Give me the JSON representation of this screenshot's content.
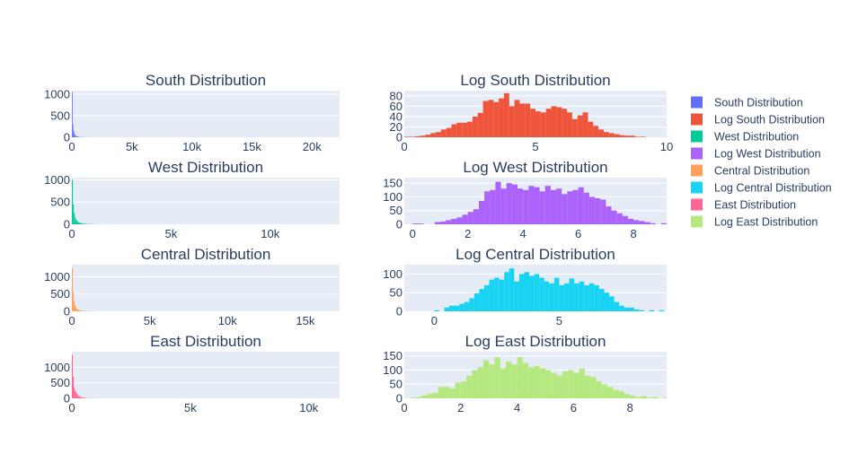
{
  "chart_data": [
    {
      "type": "bar",
      "title": "South Distribution",
      "color": "#636efa",
      "xlim": [
        0,
        22300
      ],
      "ylim": [
        0,
        1080
      ],
      "xticks": [
        {
          "v": 0,
          "l": "0"
        },
        {
          "v": 5000,
          "l": "5k"
        },
        {
          "v": 10000,
          "l": "10k"
        },
        {
          "v": 15000,
          "l": "15k"
        },
        {
          "v": 20000,
          "l": "20k"
        }
      ],
      "yticks": [
        {
          "v": 0,
          "l": "0"
        },
        {
          "v": 500,
          "l": "500"
        },
        {
          "v": 1000,
          "l": "1000"
        }
      ],
      "bin_start": 0,
      "bin_width": 60,
      "values": [
        1050,
        300,
        150,
        80,
        50,
        35,
        25,
        18,
        14,
        10,
        8,
        6,
        5,
        4,
        3,
        3,
        2,
        2,
        2,
        1,
        1,
        1,
        1,
        1,
        1,
        0,
        1,
        0,
        1,
        0,
        1
      ]
    },
    {
      "type": "bar",
      "title": "Log South Distribution",
      "color": "#ef553b",
      "xlim": [
        0,
        10
      ],
      "ylim": [
        0,
        90
      ],
      "xticks": [
        {
          "v": 0,
          "l": "0"
        },
        {
          "v": 5,
          "l": "5"
        },
        {
          "v": 10,
          "l": "10"
        }
      ],
      "yticks": [
        {
          "v": 0,
          "l": "0"
        },
        {
          "v": 20,
          "l": "20"
        },
        {
          "v": 40,
          "l": "40"
        },
        {
          "v": 60,
          "l": "60"
        },
        {
          "v": 80,
          "l": "80"
        }
      ],
      "bin_start": 0,
      "bin_width": 0.2,
      "values": [
        1,
        1,
        2,
        3,
        5,
        8,
        10,
        15,
        18,
        25,
        28,
        28,
        30,
        40,
        47,
        70,
        72,
        68,
        75,
        85,
        60,
        72,
        65,
        65,
        55,
        50,
        48,
        55,
        60,
        58,
        55,
        48,
        35,
        42,
        48,
        30,
        22,
        15,
        10,
        8,
        6,
        4,
        3,
        3,
        1,
        1,
        0,
        0,
        0,
        0
      ]
    },
    {
      "type": "bar",
      "title": "West Distribution",
      "color": "#00cc96",
      "xlim": [
        0,
        13500
      ],
      "ylim": [
        0,
        1050
      ],
      "xticks": [
        {
          "v": 0,
          "l": "0"
        },
        {
          "v": 5000,
          "l": "5k"
        },
        {
          "v": 10000,
          "l": "10k"
        }
      ],
      "yticks": [
        {
          "v": 0,
          "l": "0"
        },
        {
          "v": 500,
          "l": "500"
        },
        {
          "v": 1000,
          "l": "1000"
        }
      ],
      "bin_start": 0,
      "bin_width": 50,
      "values": [
        1000,
        450,
        250,
        150,
        95,
        70,
        50,
        40,
        30,
        25,
        20,
        15,
        12,
        10,
        8,
        7,
        6,
        5,
        4,
        4,
        3,
        3,
        2,
        2,
        2,
        1,
        1,
        1,
        1,
        1,
        1,
        1,
        1
      ]
    },
    {
      "type": "bar",
      "title": "Log West Distribution",
      "color": "#ab63fa",
      "xlim": [
        -0.3,
        9.2
      ],
      "ylim": [
        0,
        170
      ],
      "xticks": [
        {
          "v": 0,
          "l": "0"
        },
        {
          "v": 2,
          "l": "2"
        },
        {
          "v": 4,
          "l": "4"
        },
        {
          "v": 6,
          "l": "6"
        },
        {
          "v": 8,
          "l": "8"
        }
      ],
      "yticks": [
        {
          "v": 0,
          "l": "0"
        },
        {
          "v": 50,
          "l": "50"
        },
        {
          "v": 100,
          "l": "100"
        },
        {
          "v": 150,
          "l": "150"
        }
      ],
      "bin_start": 0,
      "bin_width": 0.2,
      "values": [
        3,
        3,
        0,
        0,
        8,
        10,
        15,
        20,
        25,
        35,
        45,
        55,
        85,
        120,
        125,
        155,
        130,
        150,
        145,
        130,
        125,
        140,
        135,
        120,
        140,
        125,
        130,
        110,
        120,
        125,
        135,
        115,
        100,
        95,
        90,
        65,
        50,
        40,
        30,
        20,
        15,
        12,
        8,
        4,
        0,
        4,
        0
      ]
    },
    {
      "type": "bar",
      "title": "Central Distribution",
      "color": "#ffa15a",
      "xlim": [
        0,
        17200
      ],
      "ylim": [
        0,
        1350
      ],
      "xticks": [
        {
          "v": 0,
          "l": "0"
        },
        {
          "v": 5000,
          "l": "5k"
        },
        {
          "v": 10000,
          "l": "10k"
        },
        {
          "v": 15000,
          "l": "15k"
        }
      ],
      "yticks": [
        {
          "v": 0,
          "l": "0"
        },
        {
          "v": 500,
          "l": "500"
        },
        {
          "v": 1000,
          "l": "1000"
        }
      ],
      "bin_start": 0,
      "bin_width": 60,
      "values": [
        1250,
        550,
        300,
        180,
        120,
        80,
        55,
        40,
        30,
        22,
        17,
        13,
        10,
        8,
        6,
        5,
        4,
        3,
        3,
        2,
        2,
        1,
        1,
        1,
        1,
        1,
        1
      ]
    },
    {
      "type": "bar",
      "title": "Log Central Distribution",
      "color": "#19d3f3",
      "xlim": [
        -1.2,
        9.3
      ],
      "ylim": [
        0,
        125
      ],
      "xticks": [
        {
          "v": 0,
          "l": "0"
        },
        {
          "v": 5,
          "l": "5"
        }
      ],
      "yticks": [
        {
          "v": 0,
          "l": "0"
        },
        {
          "v": 50,
          "l": "50"
        },
        {
          "v": 100,
          "l": "100"
        }
      ],
      "bin_start": 0,
      "bin_width": 0.2,
      "values": [
        3,
        0,
        10,
        15,
        15,
        20,
        25,
        35,
        48,
        60,
        70,
        85,
        90,
        85,
        105,
        115,
        80,
        100,
        105,
        95,
        100,
        90,
        80,
        75,
        90,
        70,
        75,
        88,
        75,
        80,
        70,
        75,
        70,
        60,
        50,
        40,
        25,
        15,
        10,
        10,
        5,
        3,
        0,
        3,
        0,
        3
      ]
    },
    {
      "type": "bar",
      "title": "East Distribution",
      "color": "#ff6692",
      "xlim": [
        0,
        11300
      ],
      "ylim": [
        0,
        1500
      ],
      "xticks": [
        {
          "v": 0,
          "l": "0"
        },
        {
          "v": 5000,
          "l": "5k"
        },
        {
          "v": 10000,
          "l": "10k"
        }
      ],
      "yticks": [
        {
          "v": 0,
          "l": "0"
        },
        {
          "v": 500,
          "l": "500"
        },
        {
          "v": 1000,
          "l": "1000"
        }
      ],
      "bin_start": 0,
      "bin_width": 40,
      "values": [
        1400,
        700,
        350,
        250,
        200,
        150,
        100,
        70,
        50,
        40,
        30,
        25,
        20,
        15,
        12,
        10,
        8,
        6,
        5,
        4,
        3,
        3,
        2,
        2,
        1,
        1,
        1,
        1,
        1,
        1
      ]
    },
    {
      "type": "bar",
      "title": "Log East Distribution",
      "color": "#b6e880",
      "xlim": [
        0,
        9.3
      ],
      "ylim": [
        0,
        165
      ],
      "xticks": [
        {
          "v": 0,
          "l": "0"
        },
        {
          "v": 2,
          "l": "2"
        },
        {
          "v": 4,
          "l": "4"
        },
        {
          "v": 6,
          "l": "6"
        },
        {
          "v": 8,
          "l": "8"
        }
      ],
      "yticks": [
        {
          "v": 0,
          "l": "0"
        },
        {
          "v": 50,
          "l": "50"
        },
        {
          "v": 100,
          "l": "100"
        },
        {
          "v": 150,
          "l": "150"
        }
      ],
      "bin_start": 0.2,
      "bin_width": 0.2,
      "values": [
        2,
        5,
        10,
        15,
        20,
        40,
        40,
        35,
        55,
        60,
        80,
        100,
        110,
        135,
        120,
        145,
        105,
        130,
        120,
        145,
        125,
        110,
        115,
        105,
        100,
        90,
        80,
        95,
        100,
        90,
        105,
        80,
        75,
        60,
        50,
        40,
        30,
        25,
        15,
        10,
        5,
        8,
        3,
        5,
        0,
        3
      ]
    }
  ],
  "legend": [
    {
      "label": "South Distribution",
      "color": "#636efa"
    },
    {
      "label": "Log South Distribution",
      "color": "#ef553b"
    },
    {
      "label": "West Distribution",
      "color": "#00cc96"
    },
    {
      "label": "Log West Distribution",
      "color": "#ab63fa"
    },
    {
      "label": "Central Distribution",
      "color": "#ffa15a"
    },
    {
      "label": "Log Central Distribution",
      "color": "#19d3f3"
    },
    {
      "label": "East Distribution",
      "color": "#ff6692"
    },
    {
      "label": "Log East Distribution",
      "color": "#b6e880"
    }
  ]
}
